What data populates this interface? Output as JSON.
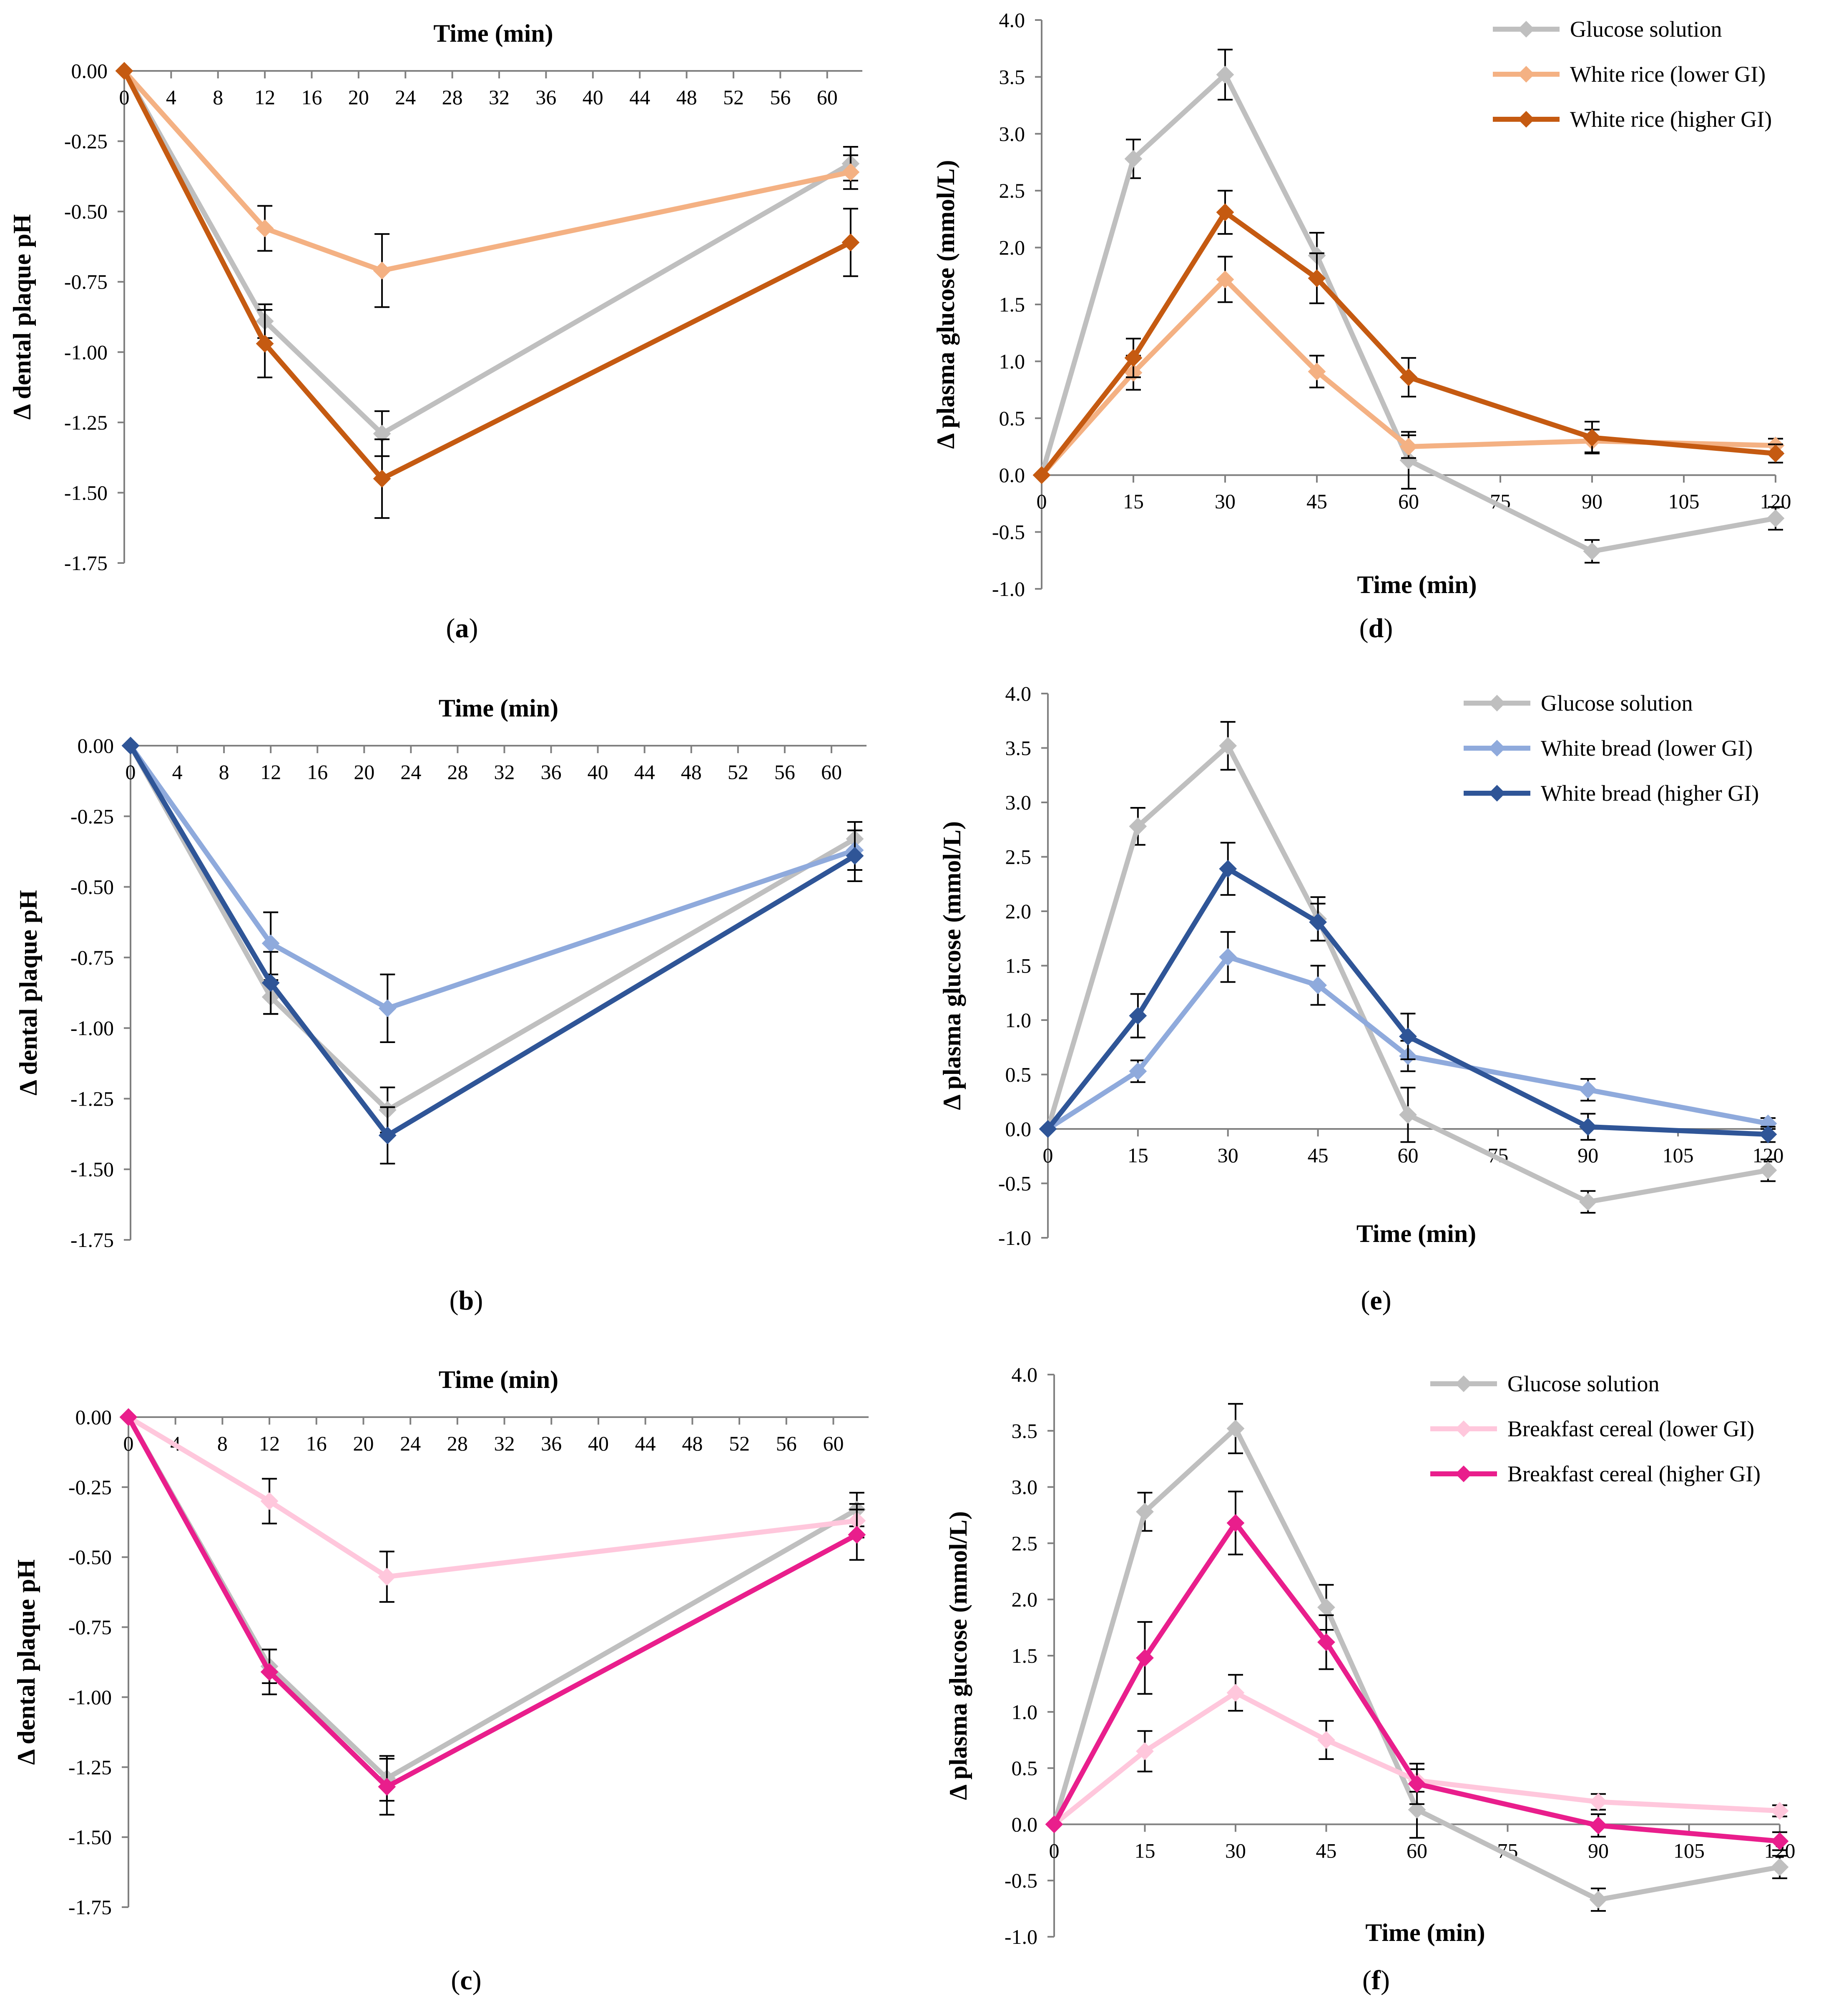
{
  "figure": {
    "colors": {
      "glucose": "#BFBFBF",
      "rice_lower": "#F4B183",
      "rice_higher": "#C55A11",
      "bread_lower": "#8FAADC",
      "bread_higher": "#2F5597",
      "cereal_lower": "#FFC7DC",
      "cereal_higher": "#E91E8C",
      "errorbar": "#000000",
      "axis": "#808080"
    }
  },
  "chart_data": [
    {
      "id": "a",
      "caption": "a",
      "type": "line",
      "kind": "ph",
      "xlabel": "Time (min)",
      "ylabel": "Δ dental plaque pH",
      "xlim": [
        0,
        63
      ],
      "ylim": [
        -1.75,
        0
      ],
      "xticks": [
        0,
        4,
        8,
        12,
        16,
        20,
        24,
        28,
        32,
        36,
        40,
        44,
        48,
        52,
        56,
        60
      ],
      "yticks": [
        0,
        -0.25,
        -0.5,
        -0.75,
        -1.0,
        -1.25,
        -1.5,
        -1.75
      ],
      "ytick_labels": [
        "0.00",
        "-0.25",
        "-0.50",
        "-0.75",
        "-1.00",
        "-1.25",
        "-1.50",
        "-1.75"
      ],
      "series": [
        {
          "name": "Glucose solution",
          "color_key": "glucose",
          "x": [
            0,
            12,
            22,
            62
          ],
          "values": [
            0,
            -0.89,
            -1.29,
            -0.33
          ],
          "err": [
            0,
            0.06,
            0.08,
            0.06
          ]
        },
        {
          "name": "White rice (lower GI)",
          "color_key": "rice_lower",
          "x": [
            0,
            12,
            22,
            62
          ],
          "values": [
            0,
            -0.56,
            -0.71,
            -0.36
          ],
          "err": [
            0,
            0.08,
            0.13,
            0.06
          ]
        },
        {
          "name": "White rice (higher GI)",
          "color_key": "rice_higher",
          "x": [
            0,
            12,
            22,
            62
          ],
          "values": [
            0,
            -0.97,
            -1.45,
            -0.61
          ],
          "err": [
            0,
            0.12,
            0.14,
            0.12
          ]
        }
      ]
    },
    {
      "id": "d",
      "caption": "d",
      "type": "line",
      "kind": "glucose",
      "xlabel": "Time (min)",
      "ylabel": "Δ plasma glucose (mmol/L)",
      "xlim": [
        0,
        120
      ],
      "ylim": [
        -1.0,
        4.0
      ],
      "xticks": [
        0,
        15,
        30,
        45,
        60,
        75,
        90,
        105,
        120
      ],
      "yticks": [
        4.0,
        3.5,
        3.0,
        2.5,
        2.0,
        1.5,
        1.0,
        0.5,
        0.0,
        -0.5,
        -1.0
      ],
      "ytick_labels": [
        "4.0",
        "3.5",
        "3.0",
        "2.5",
        "2.0",
        "1.5",
        "1.0",
        "0.5",
        "0.0",
        "-0.5",
        "-1.0"
      ],
      "legend": [
        "Glucose solution",
        "White rice (lower GI)",
        "White rice (higher GI)"
      ],
      "series": [
        {
          "name": "Glucose solution",
          "color_key": "glucose",
          "x": [
            0,
            15,
            30,
            45,
            60,
            90,
            120
          ],
          "values": [
            0,
            2.78,
            3.52,
            1.93,
            0.13,
            -0.67,
            -0.38
          ],
          "err": [
            0,
            0.17,
            0.22,
            0.2,
            0.25,
            0.1,
            0.1
          ]
        },
        {
          "name": "White rice (lower GI)",
          "color_key": "rice_lower",
          "x": [
            0,
            15,
            30,
            45,
            60,
            90,
            120
          ],
          "values": [
            0,
            0.9,
            1.72,
            0.91,
            0.25,
            0.3,
            0.26
          ],
          "err": [
            0,
            0.15,
            0.2,
            0.14,
            0.1,
            0.1,
            0.06
          ]
        },
        {
          "name": "White rice (higher GI)",
          "color_key": "rice_higher",
          "x": [
            0,
            15,
            30,
            45,
            60,
            90,
            120
          ],
          "values": [
            0,
            1.03,
            2.31,
            1.73,
            0.86,
            0.33,
            0.19
          ],
          "err": [
            0,
            0.17,
            0.19,
            0.22,
            0.17,
            0.14,
            0.08
          ]
        }
      ]
    },
    {
      "id": "b",
      "caption": "b",
      "type": "line",
      "kind": "ph",
      "xlabel": "Time (min)",
      "ylabel": "Δ dental plaque pH",
      "xlim": [
        0,
        63
      ],
      "ylim": [
        -1.75,
        0
      ],
      "xticks": [
        0,
        4,
        8,
        12,
        16,
        20,
        24,
        28,
        32,
        36,
        40,
        44,
        48,
        52,
        56,
        60
      ],
      "yticks": [
        0,
        -0.25,
        -0.5,
        -0.75,
        -1.0,
        -1.25,
        -1.5,
        -1.75
      ],
      "ytick_labels": [
        "0.00",
        "-0.25",
        "-0.50",
        "-0.75",
        "-1.00",
        "-1.25",
        "-1.50",
        "-1.75"
      ],
      "series": [
        {
          "name": "Glucose solution",
          "color_key": "glucose",
          "x": [
            0,
            12,
            22,
            62
          ],
          "values": [
            0,
            -0.89,
            -1.29,
            -0.33
          ],
          "err": [
            0,
            0.06,
            0.08,
            0.06
          ]
        },
        {
          "name": "White bread (lower GI)",
          "color_key": "bread_lower",
          "x": [
            0,
            12,
            22,
            62
          ],
          "values": [
            0,
            -0.7,
            -0.93,
            -0.37
          ],
          "err": [
            0,
            0.11,
            0.12,
            0.07
          ]
        },
        {
          "name": "White bread (higher GI)",
          "color_key": "bread_higher",
          "x": [
            0,
            12,
            22,
            62
          ],
          "values": [
            0,
            -0.84,
            -1.38,
            -0.39
          ],
          "err": [
            0,
            0.11,
            0.1,
            0.09
          ]
        }
      ]
    },
    {
      "id": "e",
      "caption": "e",
      "type": "line",
      "kind": "glucose",
      "xlabel": "Time (min)",
      "ylabel": "Δ plasma glucose (mmol/L)",
      "xlim": [
        0,
        120
      ],
      "ylim": [
        -1.0,
        4.0
      ],
      "xticks": [
        0,
        15,
        30,
        45,
        60,
        75,
        90,
        105,
        120
      ],
      "yticks": [
        4.0,
        3.5,
        3.0,
        2.5,
        2.0,
        1.5,
        1.0,
        0.5,
        0.0,
        -0.5,
        -1.0
      ],
      "ytick_labels": [
        "4.0",
        "3.5",
        "3.0",
        "2.5",
        "2.0",
        "1.5",
        "1.0",
        "0.5",
        "0.0",
        "-0.5",
        "-1.0"
      ],
      "legend": [
        "Glucose solution",
        "White bread (lower GI)",
        "White bread (higher GI)"
      ],
      "series": [
        {
          "name": "Glucose solution",
          "color_key": "glucose",
          "x": [
            0,
            15,
            30,
            45,
            60,
            90,
            120
          ],
          "values": [
            0,
            2.78,
            3.52,
            1.93,
            0.13,
            -0.67,
            -0.38
          ],
          "err": [
            0,
            0.17,
            0.22,
            0.2,
            0.25,
            0.1,
            0.1
          ]
        },
        {
          "name": "White bread (lower GI)",
          "color_key": "bread_lower",
          "x": [
            0,
            15,
            30,
            45,
            60,
            90,
            120
          ],
          "values": [
            0,
            0.53,
            1.58,
            1.32,
            0.67,
            0.36,
            0.05
          ],
          "err": [
            0,
            0.1,
            0.23,
            0.18,
            0.14,
            0.1,
            0.05
          ]
        },
        {
          "name": "White bread (higher GI)",
          "color_key": "bread_higher",
          "x": [
            0,
            15,
            30,
            45,
            60,
            90,
            120
          ],
          "values": [
            0,
            1.04,
            2.39,
            1.9,
            0.85,
            0.02,
            -0.05
          ],
          "err": [
            0,
            0.2,
            0.24,
            0.17,
            0.21,
            0.12,
            0.07
          ]
        }
      ]
    },
    {
      "id": "c",
      "caption": "c",
      "type": "line",
      "kind": "ph",
      "xlabel": "Time (min)",
      "ylabel": "Δ dental plaque pH",
      "xlim": [
        0,
        63
      ],
      "ylim": [
        -1.75,
        0
      ],
      "xticks": [
        0,
        4,
        8,
        12,
        16,
        20,
        24,
        28,
        32,
        36,
        40,
        44,
        48,
        52,
        56,
        60
      ],
      "yticks": [
        0,
        -0.25,
        -0.5,
        -0.75,
        -1.0,
        -1.25,
        -1.5,
        -1.75
      ],
      "ytick_labels": [
        "0.00",
        "-0.25",
        "-0.50",
        "-0.75",
        "-1.00",
        "-1.25",
        "-1.50",
        "-1.75"
      ],
      "series": [
        {
          "name": "Glucose solution",
          "color_key": "glucose",
          "x": [
            0,
            12,
            22,
            62
          ],
          "values": [
            0,
            -0.89,
            -1.29,
            -0.33
          ],
          "err": [
            0,
            0.06,
            0.08,
            0.06
          ]
        },
        {
          "name": "Breakfast cereal (lower GI)",
          "color_key": "cereal_lower",
          "x": [
            0,
            12,
            22,
            62
          ],
          "values": [
            0,
            -0.3,
            -0.57,
            -0.37
          ],
          "err": [
            0,
            0.08,
            0.09,
            0.06
          ]
        },
        {
          "name": "Breakfast cereal (higher GI)",
          "color_key": "cereal_higher",
          "x": [
            0,
            12,
            22,
            62
          ],
          "values": [
            0,
            -0.91,
            -1.32,
            -0.42
          ],
          "err": [
            0,
            0.08,
            0.1,
            0.09
          ]
        }
      ]
    },
    {
      "id": "f",
      "caption": "f",
      "type": "line",
      "kind": "glucose",
      "xlabel": "Time (min)",
      "ylabel": "Δ plasma glucose (mmol/L)",
      "xlim": [
        0,
        120
      ],
      "ylim": [
        -1.0,
        4.0
      ],
      "xticks": [
        0,
        15,
        30,
        45,
        60,
        75,
        90,
        105,
        120
      ],
      "yticks": [
        4.0,
        3.5,
        3.0,
        2.5,
        2.0,
        1.5,
        1.0,
        0.5,
        0.0,
        -0.5,
        -1.0
      ],
      "ytick_labels": [
        "4.0",
        "3.5",
        "3.0",
        "2.5",
        "2.0",
        "1.5",
        "1.0",
        "0.5",
        "0.0",
        "-0.5",
        "-1.0"
      ],
      "legend": [
        "Glucose solution",
        "Breakfast cereal (lower GI)",
        "Breakfast cereal (higher GI)"
      ],
      "series": [
        {
          "name": "Glucose solution",
          "color_key": "glucose",
          "x": [
            0,
            15,
            30,
            45,
            60,
            90,
            120
          ],
          "values": [
            0,
            2.78,
            3.52,
            1.93,
            0.13,
            -0.67,
            -0.38
          ],
          "err": [
            0,
            0.17,
            0.22,
            0.2,
            0.25,
            0.1,
            0.1
          ]
        },
        {
          "name": "Breakfast cereal (lower GI)",
          "color_key": "cereal_lower",
          "x": [
            0,
            15,
            30,
            45,
            60,
            90,
            120
          ],
          "values": [
            0,
            0.65,
            1.17,
            0.75,
            0.39,
            0.2,
            0.12
          ],
          "err": [
            0,
            0.18,
            0.16,
            0.17,
            0.1,
            0.07,
            0.05
          ]
        },
        {
          "name": "Breakfast cereal (higher GI)",
          "color_key": "cereal_higher",
          "x": [
            0,
            15,
            30,
            45,
            60,
            90,
            120
          ],
          "values": [
            0,
            1.48,
            2.68,
            1.62,
            0.36,
            -0.01,
            -0.15
          ],
          "err": [
            0,
            0.32,
            0.28,
            0.24,
            0.18,
            0.1,
            0.08
          ]
        }
      ]
    }
  ]
}
